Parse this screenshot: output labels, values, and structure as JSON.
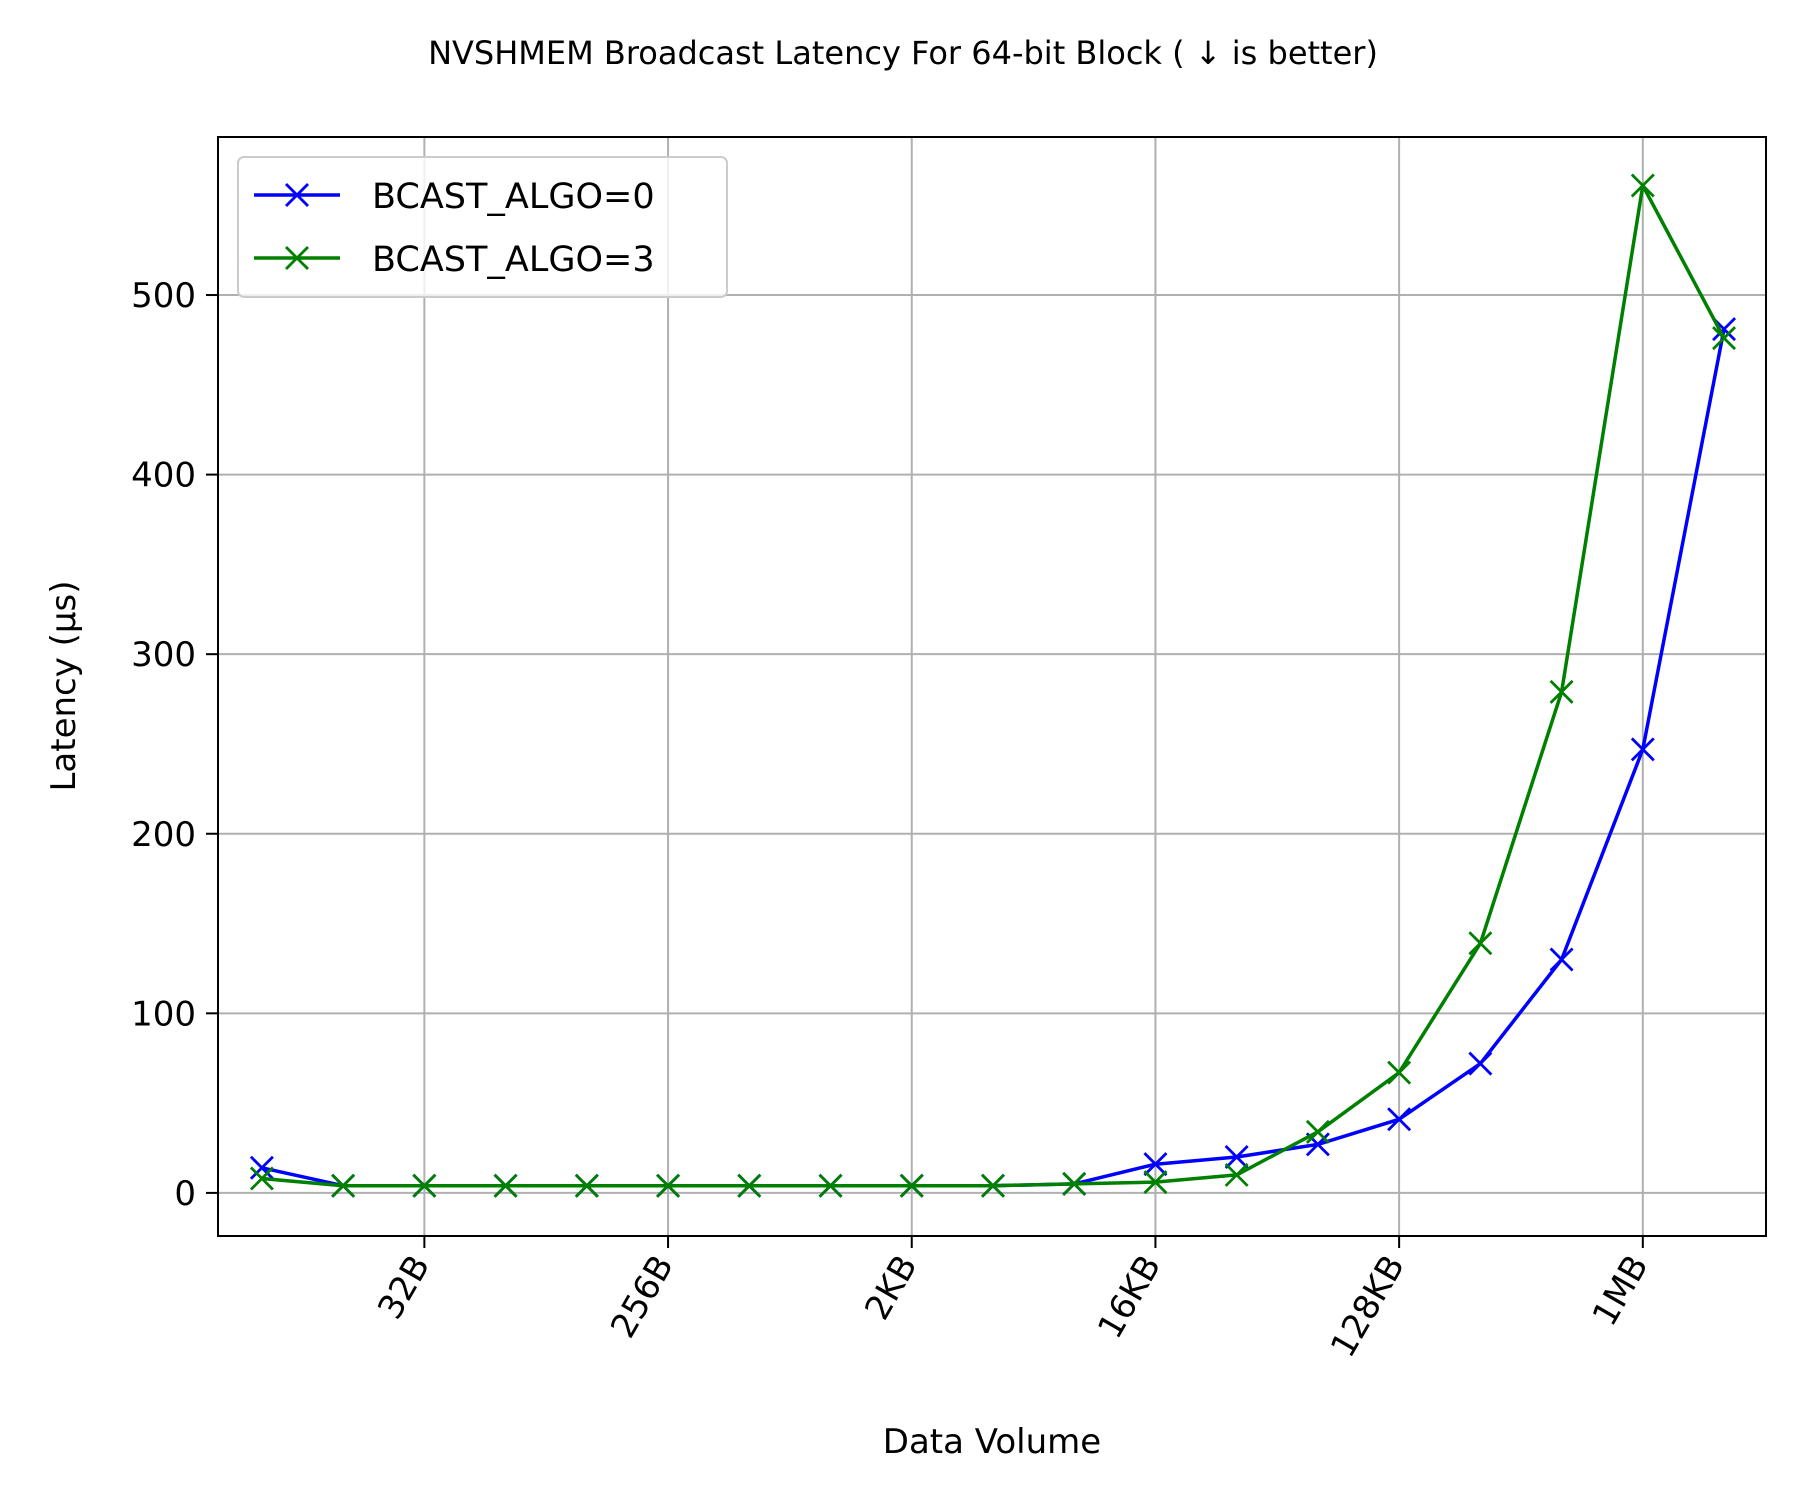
{
  "chart_data": {
    "type": "line",
    "title": "NVSHMEM Broadcast Latency For 64-bit Block ( ↓  is better)",
    "xlabel": "Data Volume",
    "ylabel": "Latency (μs)",
    "x_scale": "log2",
    "x_unit": "bytes",
    "x": [
      8,
      16,
      32,
      64,
      128,
      256,
      512,
      1024,
      2048,
      4096,
      8192,
      16384,
      32768,
      65536,
      131072,
      262144,
      524288,
      1048576,
      2097152
    ],
    "xticks": [
      {
        "value": 32,
        "label": "32B"
      },
      {
        "value": 256,
        "label": "256B"
      },
      {
        "value": 2048,
        "label": "2KB"
      },
      {
        "value": 16384,
        "label": "16KB"
      },
      {
        "value": 131072,
        "label": "128KB"
      },
      {
        "value": 1048576,
        "label": "1MB"
      }
    ],
    "xlim": [
      5.5,
      3000000
    ],
    "yticks": [
      0,
      100,
      200,
      300,
      400,
      500
    ],
    "ylim": [
      -24,
      588
    ],
    "grid": true,
    "legend_position": "top-left",
    "series": [
      {
        "name": "BCAST_ALGO=0",
        "color": "#0000ff",
        "marker": "x",
        "values": [
          14,
          4,
          4,
          4,
          4,
          4,
          4,
          4,
          4,
          4,
          5,
          16,
          20,
          27,
          41,
          72,
          130,
          247,
          481
        ]
      },
      {
        "name": "BCAST_ALGO=3",
        "color": "#008000",
        "marker": "x",
        "values": [
          8,
          4,
          4,
          4,
          4,
          4,
          4,
          4,
          4,
          4,
          5,
          6,
          10,
          34,
          67,
          139,
          279,
          561,
          476
        ]
      }
    ]
  }
}
